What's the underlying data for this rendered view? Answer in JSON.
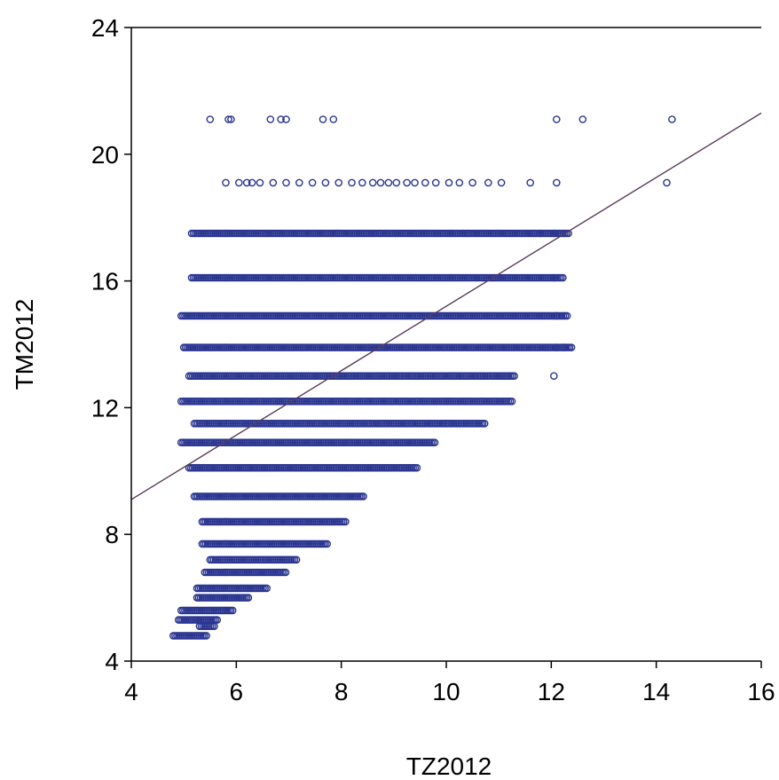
{
  "chart_data": {
    "type": "scatter",
    "title": "",
    "xlabel": "TZ2012",
    "ylabel": "TM2012",
    "xlim": [
      4,
      16
    ],
    "ylim": [
      4,
      24
    ],
    "xticks": [
      4,
      6,
      8,
      10,
      12,
      14,
      16
    ],
    "xtick_labels": [
      "4",
      "6",
      "8",
      "10",
      "12",
      "14",
      "16"
    ],
    "yticks": [
      4,
      8,
      12,
      16,
      20,
      24
    ],
    "ytick_labels": [
      "4",
      "8",
      "12",
      "16",
      "20",
      "24"
    ],
    "grid": false,
    "legend": "none",
    "marker": "hollow-circle",
    "colors": {
      "points": "#2a3590",
      "fit_line": "#5a3a58",
      "axis": "#000000"
    },
    "fit_line": {
      "x": [
        4,
        16
      ],
      "y": [
        9.1,
        21.3
      ]
    },
    "point_bands": [
      {
        "y": 21.1,
        "x_values": [
          5.5,
          5.85,
          5.9,
          6.65,
          6.85,
          6.95,
          7.65,
          7.85,
          12.1,
          12.6,
          14.3
        ]
      },
      {
        "y": 19.1,
        "x_values": [
          5.8,
          6.05,
          6.2,
          6.3,
          6.45,
          6.7,
          6.95,
          7.2,
          7.45,
          7.7,
          7.95,
          8.2,
          8.4,
          8.6,
          8.75,
          8.9,
          9.05,
          9.25,
          9.4,
          9.6,
          9.8,
          10.05,
          10.25,
          10.5,
          10.8,
          11.05,
          11.6,
          12.1,
          14.2
        ]
      },
      {
        "y": 17.5,
        "x_min": 5.15,
        "x_max": 12.35,
        "x_outliers": [
          11.8,
          12.05
        ]
      },
      {
        "y": 16.1,
        "x_min": 5.15,
        "x_max": 12.25,
        "x_outliers": [
          12.05
        ]
      },
      {
        "y": 14.9,
        "x_min": 4.95,
        "x_max": 12.3,
        "x_outliers": [
          12.1
        ]
      },
      {
        "y": 13.9,
        "x_min": 5.0,
        "x_max": 12.4,
        "x_outliers": [
          12.1,
          12.25
        ]
      },
      {
        "y": 13.0,
        "x_min": 5.1,
        "x_max": 11.3,
        "x_outliers": [
          12.05
        ]
      },
      {
        "y": 12.2,
        "x_min": 4.95,
        "x_max": 11.25,
        "x_outliers": []
      },
      {
        "y": 11.5,
        "x_min": 5.2,
        "x_max": 10.75,
        "x_outliers": []
      },
      {
        "y": 10.9,
        "x_min": 4.95,
        "x_max": 9.8,
        "x_outliers": []
      },
      {
        "y": 10.1,
        "x_min": 5.1,
        "x_max": 9.45,
        "x_outliers": []
      },
      {
        "y": 9.2,
        "x_min": 5.2,
        "x_max": 8.45,
        "x_outliers": []
      },
      {
        "y": 8.4,
        "x_min": 5.35,
        "x_max": 8.1,
        "x_outliers": []
      },
      {
        "y": 7.7,
        "x_min": 5.35,
        "x_max": 7.75,
        "x_outliers": []
      },
      {
        "y": 7.2,
        "x_min": 5.5,
        "x_max": 7.15,
        "x_outliers": []
      },
      {
        "y": 6.8,
        "x_min": 5.4,
        "x_max": 6.95,
        "x_outliers": []
      },
      {
        "y": 6.3,
        "x_min": 5.25,
        "x_max": 6.6,
        "x_outliers": []
      },
      {
        "y": 6.0,
        "x_min": 5.25,
        "x_max": 6.25,
        "x_outliers": []
      },
      {
        "y": 5.6,
        "x_min": 4.95,
        "x_max": 5.95,
        "x_outliers": []
      },
      {
        "y": 5.3,
        "x_min": 4.9,
        "x_max": 5.65,
        "x_outliers": []
      },
      {
        "y": 5.1,
        "x_min": 5.3,
        "x_max": 5.6,
        "x_outliers": []
      },
      {
        "y": 4.8,
        "x_min": 4.8,
        "x_max": 5.45,
        "x_outliers": []
      }
    ]
  }
}
